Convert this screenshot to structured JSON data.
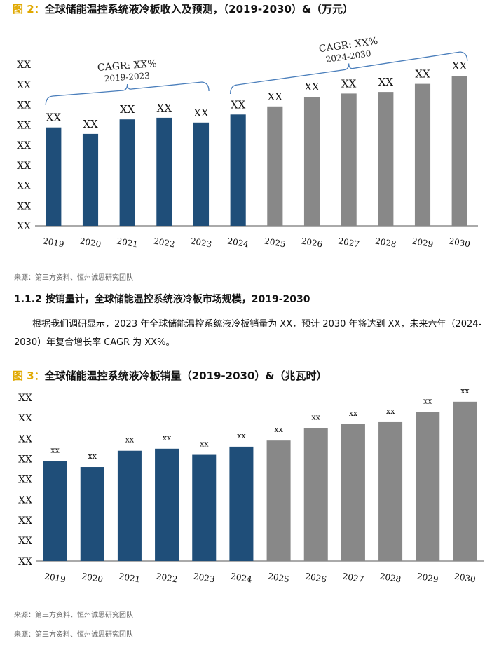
{
  "figure2": {
    "label": "图 2：",
    "title": "全球储能温控系统液冷板收入及预测，（2019-2030）&（万元）",
    "source": "来源：第三方资料、恒州诚思研究团队"
  },
  "section": {
    "heading": "1.1.2  按销量计，全球储能温控系统液冷板市场规模，2019-2030",
    "paragraph": "根据我们调研显示，2023 年全球储能温控系统液冷板销量为 XX，预计 2030 年将达到 XX，未来六年（2024-2030）年复合增长率 CAGR 为 XX%。"
  },
  "figure3": {
    "label": "图 3：",
    "title": "全球储能温控系统液冷板销量（2019-2030）&（兆瓦时）",
    "source": "来源：第三方资料、恒州诚思研究团队"
  },
  "footer_source": "来源：第三方资料、恒州诚思研究团队",
  "colors": {
    "historical": "#1f4e79",
    "forecast": "#888888",
    "bracket": "#4a7ebb",
    "title_label": "#e0a800"
  },
  "chart_data": [
    {
      "type": "bar",
      "categories": [
        "2019",
        "2020",
        "2021",
        "2022",
        "2023",
        "2024",
        "2025",
        "2026",
        "2027",
        "2028",
        "2029",
        "2030"
      ],
      "values": [
        61,
        57,
        66,
        67,
        64,
        69,
        74,
        80,
        82,
        83,
        88,
        93
      ],
      "data_labels": [
        "XX",
        "XX",
        "XX",
        "XX",
        "XX",
        "XX",
        "XX",
        "XX",
        "XX",
        "XX",
        "XX",
        "XX"
      ],
      "series_colors": [
        "historical",
        "historical",
        "historical",
        "historical",
        "historical",
        "historical",
        "forecast",
        "forecast",
        "forecast",
        "forecast",
        "forecast",
        "forecast"
      ],
      "y_tick_labels": [
        "XX",
        "XX",
        "XX",
        "XX",
        "XX",
        "XX",
        "XX",
        "XX",
        "XX"
      ],
      "ylim": [
        0,
        100
      ],
      "annotations": [
        {
          "text": "CAGR: XX%",
          "subtext": "2019-2023",
          "from": "2019",
          "to": "2023"
        },
        {
          "text": "CAGR: XX%",
          "subtext": "2024-2030",
          "from": "2024",
          "to": "2030"
        }
      ]
    },
    {
      "type": "bar",
      "categories": [
        "2019",
        "2020",
        "2021",
        "2022",
        "2023",
        "2024",
        "2025",
        "2026",
        "2027",
        "2028",
        "2029",
        "2030"
      ],
      "values": [
        49,
        46,
        54,
        55,
        52,
        56,
        59,
        65,
        67,
        68,
        73,
        78
      ],
      "data_labels": [
        "xx",
        "xx",
        "xx",
        "xx",
        "xx",
        "xx",
        "xx",
        "xx",
        "xx",
        "xx",
        "xx",
        "xx"
      ],
      "series_colors": [
        "historical",
        "historical",
        "historical",
        "historical",
        "historical",
        "historical",
        "forecast",
        "forecast",
        "forecast",
        "forecast",
        "forecast",
        "forecast"
      ],
      "y_tick_labels": [
        "XX",
        "XX",
        "XX",
        "XX",
        "XX",
        "XX",
        "XX",
        "XX",
        "XX"
      ],
      "ylim": [
        0,
        80
      ]
    }
  ]
}
